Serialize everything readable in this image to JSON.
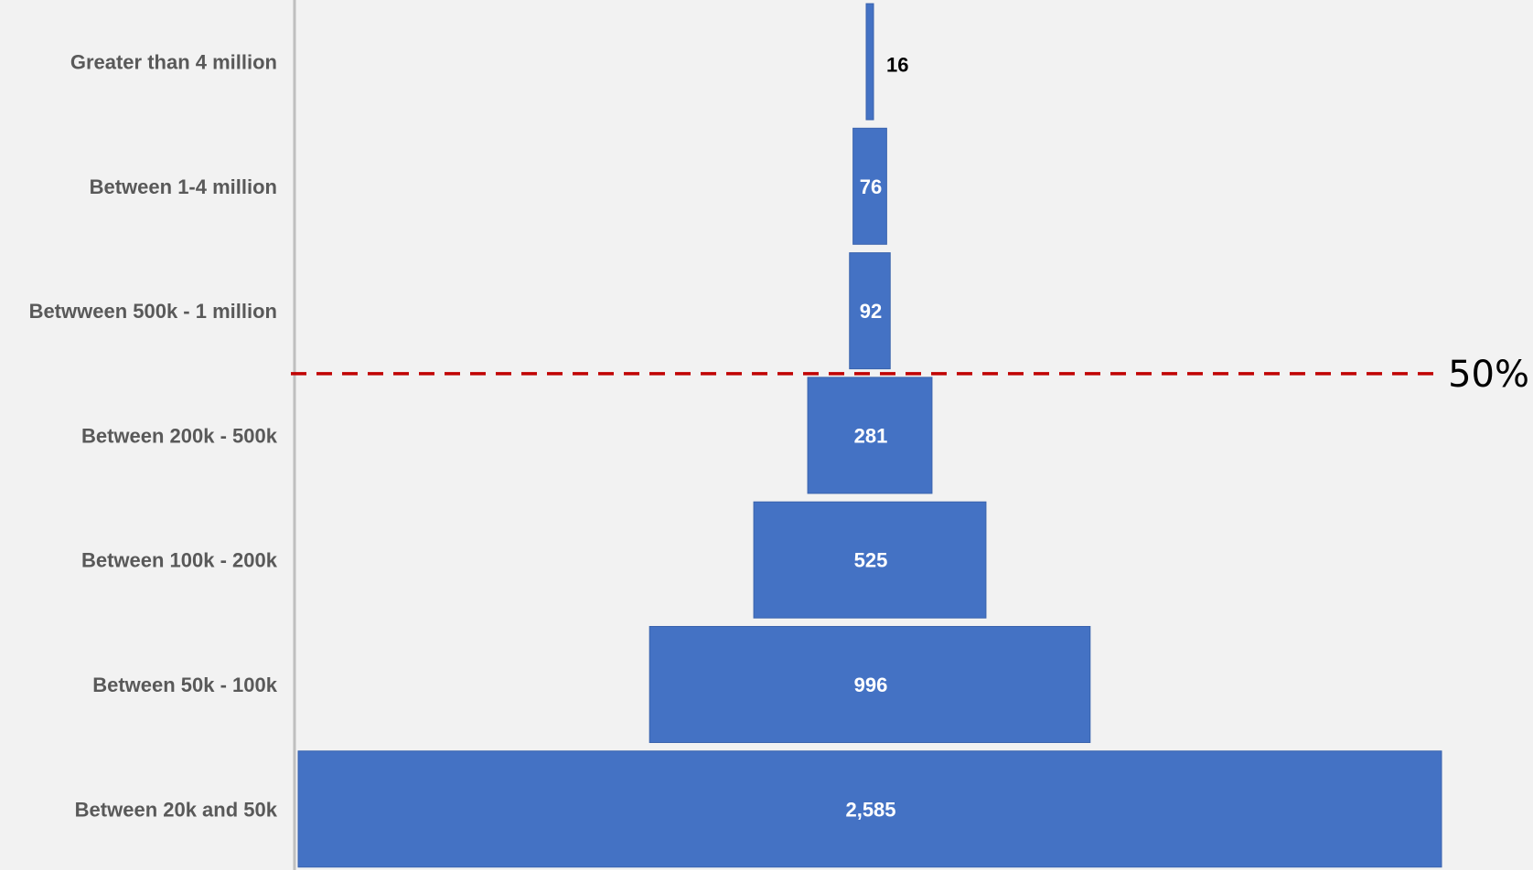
{
  "chart_data": {
    "type": "bar",
    "subtype": "funnel",
    "orientation": "horizontal-centered",
    "categories": [
      "Greater than 4 million",
      "Between 1-4 million",
      "Betwween 500k - 1 million",
      "Between 200k - 500k",
      "Between 100k - 200k",
      "Between 50k - 100k",
      "Between 20k and 50k"
    ],
    "values": [
      16,
      76,
      92,
      281,
      525,
      996,
      2585
    ],
    "value_labels": [
      "16",
      "76",
      "92",
      "281",
      "525",
      "996",
      "2,585"
    ],
    "bar_color": "#4472c4",
    "bar_border_color": "#3a63ad",
    "label_color_inside": "#ffffff",
    "label_color_outside": "#000000",
    "category_label_color": "#595959",
    "axis_color": "#bfbfbf",
    "title": "",
    "xlabel": "",
    "ylabel": "",
    "grid": false,
    "legend": "none",
    "threshold": {
      "label": "50%",
      "after_category_index": 2,
      "line_style": "dashed",
      "color": "#c00000"
    }
  }
}
